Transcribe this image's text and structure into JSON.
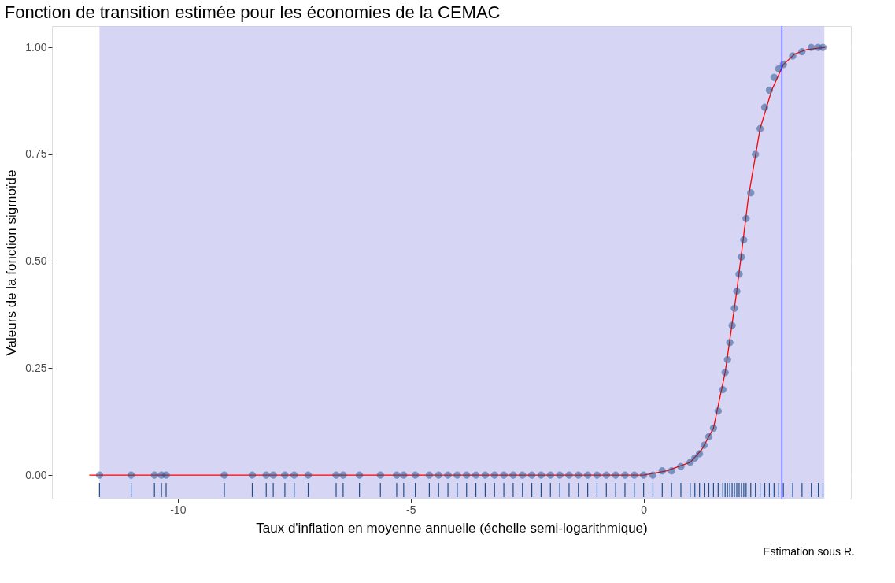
{
  "chart_data": {
    "type": "scatter",
    "title": "Fonction de transition estimée pour les économies de la CEMAC",
    "xlabel": "Taux d'inflation en moyenne annuelle (échelle semi-logarithmique)",
    "ylabel": "Valeurs de la fonction sigmoïde",
    "annotations": [
      "Estimation sous R."
    ],
    "xlim": [
      -12.7,
      4.45
    ],
    "ylim": [
      -0.055,
      1.05
    ],
    "xticks": [
      -10,
      -5,
      0
    ],
    "yticks": [
      {
        "value": 0,
        "label": "0.00"
      },
      {
        "value": 0.25,
        "label": "0.25"
      },
      {
        "value": 0.5,
        "label": "0.50"
      },
      {
        "value": 0.75,
        "label": "0.75"
      },
      {
        "value": 1,
        "label": "1.00"
      }
    ],
    "grid": true,
    "series": [
      {
        "type": "line",
        "color": "#ff0000",
        "x": [
          -11.9,
          -5,
          0,
          0.5,
          1.0,
          1.25,
          1.5,
          1.75,
          2.0,
          2.25,
          2.5,
          2.75,
          3.0,
          3.25,
          3.5,
          3.9
        ],
        "values": [
          0,
          0,
          0,
          0.01,
          0.03,
          0.06,
          0.11,
          0.24,
          0.43,
          0.65,
          0.81,
          0.9,
          0.96,
          0.985,
          0.995,
          1.0
        ]
      },
      {
        "type": "scatter",
        "color": "#1f4e8c",
        "marker": "circle",
        "x": [
          -11.68,
          -11.0,
          -10.5,
          -10.35,
          -10.25,
          -9.0,
          -8.4,
          -8.1,
          -7.95,
          -7.7,
          -7.5,
          -7.2,
          -6.6,
          -6.45,
          -6.1,
          -5.65,
          -5.3,
          -5.15,
          -4.9,
          -4.6,
          -4.4,
          -4.2,
          -4.0,
          -3.8,
          -3.6,
          -3.4,
          -3.2,
          -3.0,
          -2.8,
          -2.6,
          -2.4,
          -2.2,
          -2.0,
          -1.8,
          -1.6,
          -1.4,
          -1.2,
          -1.0,
          -0.8,
          -0.6,
          -0.4,
          -0.2,
          0,
          0.2,
          0.4,
          0.6,
          0.8,
          1.0,
          1.1,
          1.2,
          1.3,
          1.4,
          1.5,
          1.6,
          1.7,
          1.75,
          1.8,
          1.85,
          1.9,
          1.95,
          2.0,
          2.05,
          2.1,
          2.15,
          2.2,
          2.3,
          2.4,
          2.5,
          2.6,
          2.7,
          2.8,
          2.9,
          3.0,
          3.2,
          3.4,
          3.6,
          3.75,
          3.85
        ],
        "values": [
          0,
          0,
          0,
          0,
          0,
          0,
          0,
          0,
          0,
          0,
          0,
          0,
          0,
          0,
          0,
          0,
          0,
          0,
          0,
          0,
          0,
          0,
          0,
          0,
          0,
          0,
          0,
          0,
          0,
          0,
          0,
          0,
          0,
          0,
          0,
          0,
          0,
          0,
          0,
          0,
          0,
          0,
          0,
          0,
          0.01,
          0.01,
          0.02,
          0.03,
          0.04,
          0.05,
          0.07,
          0.09,
          0.11,
          0.15,
          0.2,
          0.24,
          0.27,
          0.31,
          0.35,
          0.39,
          0.43,
          0.47,
          0.51,
          0.55,
          0.6,
          0.66,
          0.75,
          0.81,
          0.86,
          0.9,
          0.93,
          0.95,
          0.96,
          0.98,
          0.99,
          1.0,
          1.0,
          1.0
        ]
      }
    ],
    "bands": [
      {
        "axis": "x",
        "from": -11.68,
        "to": 3.88,
        "color": "#c8c8f0"
      }
    ],
    "ref_lines": [
      {
        "axis": "x",
        "value": 2.97,
        "color": "#0000ff"
      }
    ]
  }
}
